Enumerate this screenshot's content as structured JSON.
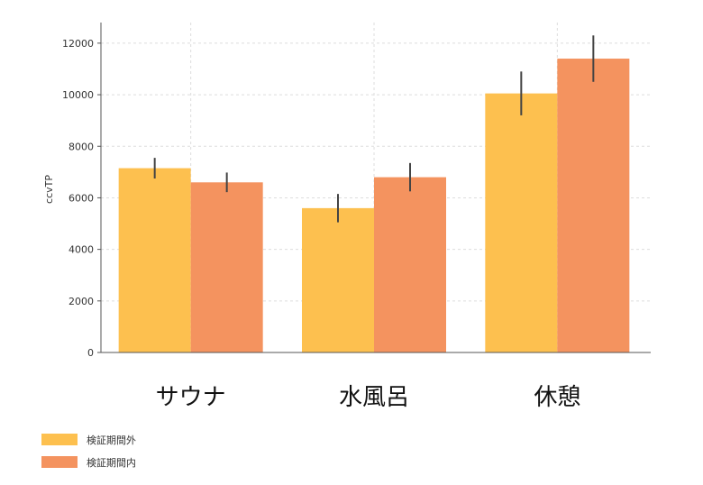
{
  "chart_data": {
    "type": "bar",
    "title": "",
    "xlabel": "",
    "ylabel": "ccvTP",
    "categories": [
      "サウナ",
      "水風呂",
      "休憩"
    ],
    "ylim": [
      0,
      12800
    ],
    "yticks": [
      0,
      2000,
      4000,
      6000,
      8000,
      10000,
      12000
    ],
    "grid": true,
    "legend_position": "bottom-left",
    "series": [
      {
        "name": "検証期間外",
        "color": "#FDC04F",
        "values": [
          7150,
          5600,
          10050
        ],
        "errors": [
          400,
          550,
          850
        ]
      },
      {
        "name": "検証期間内",
        "color": "#F4935F",
        "values": [
          6600,
          6800,
          11400
        ],
        "errors": [
          380,
          550,
          900
        ]
      }
    ]
  }
}
